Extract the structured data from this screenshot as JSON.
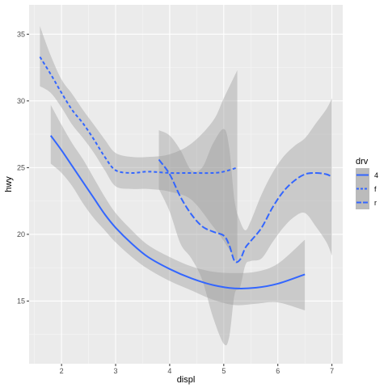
{
  "chart_data": {
    "type": "line",
    "xlabel": "displ",
    "ylabel": "hwy",
    "xlim": [
      1.4,
      7.2
    ],
    "ylim": [
      10.3,
      37.2
    ],
    "x_ticks": [
      2,
      3,
      4,
      5,
      6,
      7
    ],
    "y_ticks": [
      15,
      20,
      25,
      30,
      35
    ],
    "grid": true,
    "legend": {
      "title": "drv",
      "position": "right"
    },
    "series": [
      {
        "name": "4",
        "dash": "solid",
        "color": "#3366FF",
        "x": [
          1.8,
          2.0,
          2.2,
          2.4,
          2.6,
          2.8,
          3.0,
          3.3,
          3.6,
          4.0,
          4.4,
          4.8,
          5.2,
          5.6,
          6.0,
          6.5
        ],
        "y": [
          27.4,
          26.3,
          25.1,
          23.9,
          22.7,
          21.5,
          20.5,
          19.3,
          18.3,
          17.4,
          16.7,
          16.2,
          15.95,
          16.0,
          16.3,
          17.0
        ],
        "ci_upper": [
          29.7,
          28.2,
          26.8,
          25.6,
          24.2,
          22.8,
          21.6,
          20.3,
          19.2,
          18.3,
          17.6,
          17.2,
          17.1,
          17.2,
          17.8,
          19.6
        ],
        "ci_lower": [
          25.3,
          24.6,
          23.6,
          22.3,
          21.2,
          20.3,
          19.4,
          18.3,
          17.4,
          16.5,
          15.8,
          15.1,
          14.7,
          14.8,
          14.9,
          14.3
        ]
      },
      {
        "name": "f",
        "dash": "dashed",
        "color": "#3366FF",
        "x": [
          1.6,
          1.8,
          2.0,
          2.2,
          2.4,
          2.6,
          2.8,
          3.0,
          3.3,
          3.6,
          4.0,
          4.4,
          4.8,
          5.0,
          5.25
        ],
        "y": [
          33.3,
          32.0,
          30.6,
          29.3,
          28.3,
          27.1,
          25.8,
          24.8,
          24.6,
          24.7,
          24.6,
          24.6,
          24.6,
          24.7,
          25.0
        ],
        "ci_upper": [
          35.6,
          33.4,
          31.6,
          30.5,
          29.3,
          28.2,
          27.1,
          26.1,
          25.8,
          25.8,
          26.0,
          26.8,
          28.5,
          30.2,
          32.3
        ],
        "ci_lower": [
          31.1,
          30.6,
          29.5,
          28.2,
          27.2,
          26.1,
          24.8,
          23.6,
          23.4,
          23.4,
          23.2,
          22.6,
          20.6,
          19.5,
          17.9
        ]
      },
      {
        "name": "r",
        "dash": "longdash",
        "color": "#3366FF",
        "x": [
          3.8,
          4.0,
          4.2,
          4.4,
          4.6,
          4.8,
          5.0,
          5.1,
          5.2,
          5.3,
          5.4,
          5.5,
          5.7,
          5.9,
          6.1,
          6.3,
          6.5,
          6.7,
          6.9,
          7.0
        ],
        "y": [
          25.6,
          24.5,
          22.8,
          21.5,
          20.6,
          20.2,
          19.9,
          19.2,
          18.0,
          18.1,
          19.0,
          19.5,
          20.5,
          22.0,
          23.2,
          24.0,
          24.5,
          24.6,
          24.5,
          24.3
        ],
        "ci_upper": [
          27.8,
          27.4,
          26.3,
          24.8,
          25.0,
          26.8,
          27.9,
          26.5,
          22.5,
          21.0,
          20.3,
          21.0,
          23.0,
          24.6,
          25.8,
          26.6,
          27.2,
          28.3,
          29.4,
          30.2
        ],
        "ci_lower": [
          23.4,
          21.7,
          19.3,
          18.2,
          16.6,
          13.8,
          11.8,
          12.3,
          15.5,
          16.0,
          17.7,
          18.0,
          18.2,
          19.4,
          20.5,
          21.3,
          21.6,
          20.6,
          19.4,
          18.4
        ]
      }
    ]
  }
}
